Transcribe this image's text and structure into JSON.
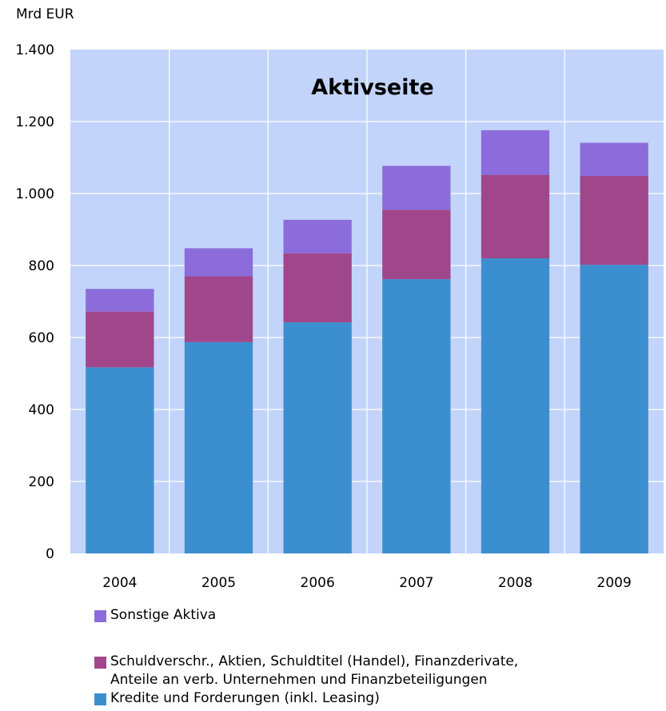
{
  "chart_data": {
    "type": "bar",
    "stacked": true,
    "title": "Aktivseite",
    "ylabel": "Mrd EUR",
    "xlabel": "",
    "categories": [
      "2004",
      "2005",
      "2006",
      "2007",
      "2008",
      "2009"
    ],
    "ylim": [
      0,
      1400
    ],
    "yticks": [
      0,
      200,
      400,
      600,
      800,
      1000,
      1200,
      1400
    ],
    "ytick_labels": [
      "0",
      "200",
      "400",
      "600",
      "800",
      "1.000",
      "1.200",
      "1.400"
    ],
    "grid": true,
    "plot_background": "#c3d4fa",
    "legend_position": "bottom",
    "series": [
      {
        "name": "Kredite und Forderungen (inkl. Leasing)",
        "color": "#3c8fcf",
        "values": [
          517,
          587,
          642,
          762,
          820,
          802
        ]
      },
      {
        "name": "Schuldverschr., Aktien, Schuldtitel (Handel), Finanzderivate,\nAnteile an verb. Unternehmen und Finanzbeteiligungen",
        "color": "#a0478b",
        "values": [
          155,
          183,
          192,
          193,
          232,
          247
        ]
      },
      {
        "name": "Sonstige Aktiva",
        "color": "#8c6cdb",
        "values": [
          63,
          78,
          93,
          122,
          124,
          92
        ]
      }
    ],
    "legend_order": [
      2,
      1,
      0
    ]
  }
}
